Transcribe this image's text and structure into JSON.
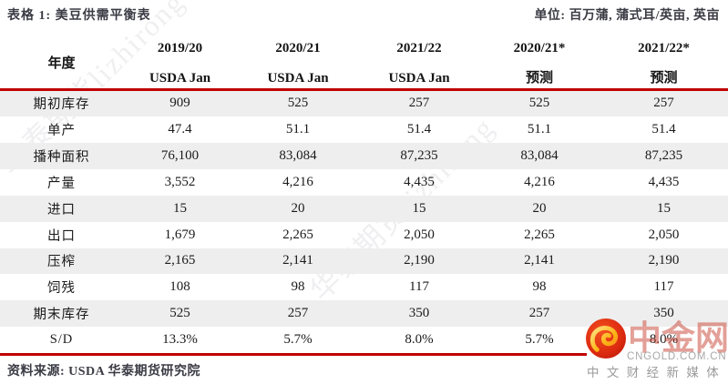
{
  "title": "表格 1: 美豆供需平衡表",
  "unit": "单位: 百万蒲, 蒲式耳/英亩, 英亩",
  "watermark_text": "华泰期货lizhirong",
  "table": {
    "row_header": "年度",
    "columns": [
      {
        "year": "2019/20",
        "sub": "USDA Jan"
      },
      {
        "year": "2020/21",
        "sub": "USDA Jan"
      },
      {
        "year": "2021/22",
        "sub": "USDA Jan"
      },
      {
        "year": "2020/21*",
        "sub": "预测"
      },
      {
        "year": "2021/22*",
        "sub": "预测"
      }
    ],
    "rows": [
      {
        "label": "期初库存",
        "values": [
          "909",
          "525",
          "257",
          "525",
          "257"
        ]
      },
      {
        "label": "单产",
        "values": [
          "47.4",
          "51.1",
          "51.4",
          "51.1",
          "51.4"
        ]
      },
      {
        "label": "播种面积",
        "values": [
          "76,100",
          "83,084",
          "87,235",
          "83,084",
          "87,235"
        ]
      },
      {
        "label": "产量",
        "values": [
          "3,552",
          "4,216",
          "4,435",
          "4,216",
          "4,435"
        ]
      },
      {
        "label": "进口",
        "values": [
          "15",
          "20",
          "15",
          "20",
          "15"
        ]
      },
      {
        "label": "出口",
        "values": [
          "1,679",
          "2,265",
          "2,050",
          "2,265",
          "2,050"
        ]
      },
      {
        "label": "压榨",
        "values": [
          "2,165",
          "2,141",
          "2,190",
          "2,141",
          "2,190"
        ]
      },
      {
        "label": "饲残",
        "values": [
          "108",
          "98",
          "117",
          "98",
          "117"
        ]
      },
      {
        "label": "期末库存",
        "values": [
          "525",
          "257",
          "350",
          "257",
          "350"
        ]
      },
      {
        "label": "S/D",
        "values": [
          "13.3%",
          "5.7%",
          "8.0%",
          "5.7%",
          "8.0%"
        ]
      }
    ]
  },
  "source": "资料来源: USDA 华泰期货研究院",
  "logo": {
    "name": "中金网",
    "domain": "CNGOLD.COM.CN",
    "tagline": "中 文 财 经 新 媒 体"
  },
  "colors": {
    "accent_red": "#c00000",
    "row_alt": "#eeeeee",
    "heading_text": "#3b3b45",
    "logo_red": "#c84232"
  }
}
